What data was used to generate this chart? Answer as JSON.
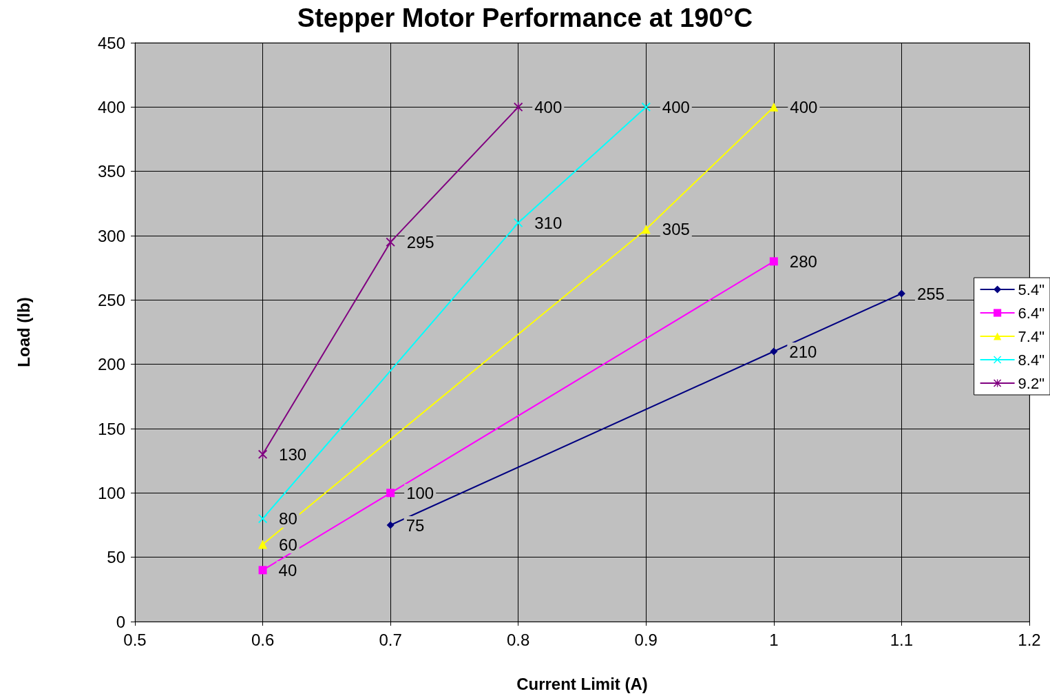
{
  "chart_data": {
    "type": "line",
    "title": "Stepper Motor Performance at 190°C",
    "xlabel": "Current Limit (A)",
    "ylabel": "Load (lb)",
    "xlim": [
      0.5,
      1.2
    ],
    "xticks": [
      0.5,
      0.6,
      0.7,
      0.8,
      0.9,
      1,
      1.1,
      1.2
    ],
    "ylim": [
      0,
      450
    ],
    "yticks": [
      0,
      50,
      100,
      150,
      200,
      250,
      300,
      350,
      400,
      450
    ],
    "grid": true,
    "legend": "right",
    "data_labels": true,
    "line_style": "solid",
    "series": [
      {
        "name": "5.4\"",
        "color": "#000080",
        "marker": "diamond",
        "x": [
          0.7,
          1.0,
          1.1
        ],
        "values": [
          75,
          210,
          255
        ]
      },
      {
        "name": "6.4\"",
        "color": "#ff00ff",
        "marker": "square",
        "x": [
          0.6,
          0.7,
          1.0
        ],
        "values": [
          40,
          100,
          280
        ]
      },
      {
        "name": "7.4\"",
        "color": "#ffff00",
        "marker": "triangle",
        "x": [
          0.6,
          0.9,
          1.0
        ],
        "values": [
          60,
          305,
          400
        ]
      },
      {
        "name": "8.4\"",
        "color": "#00ffff",
        "marker": "cross",
        "x": [
          0.6,
          0.8,
          0.9
        ],
        "values": [
          80,
          310,
          400
        ]
      },
      {
        "name": "9.2\"",
        "color": "#800080",
        "marker": "star",
        "x": [
          0.6,
          0.7,
          0.8
        ],
        "values": [
          130,
          295,
          400
        ]
      }
    ]
  }
}
